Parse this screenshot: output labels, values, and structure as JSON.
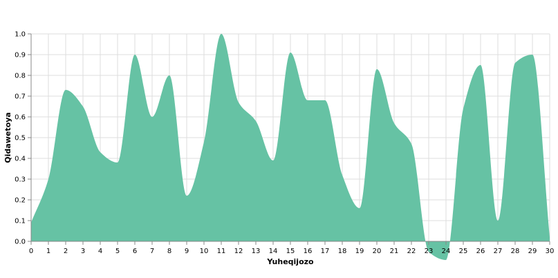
{
  "chart_data": {
    "type": "area",
    "title": "",
    "xlabel": "Yuheqijozo",
    "ylabel": "Qidawetoya",
    "xlim": [
      0,
      30
    ],
    "ylim": [
      0,
      1.0
    ],
    "x_ticks": [
      "0",
      "1",
      "2",
      "3",
      "4",
      "5",
      "6",
      "7",
      "8",
      "9",
      "10",
      "11",
      "12",
      "13",
      "14",
      "15",
      "16",
      "17",
      "18",
      "19",
      "20",
      "21",
      "22",
      "23",
      "24",
      "25",
      "26",
      "27",
      "28",
      "29",
      "30"
    ],
    "y_ticks": [
      "0.0",
      "0.1",
      "0.2",
      "0.3",
      "0.4",
      "0.5",
      "0.6",
      "0.7",
      "0.8",
      "0.9",
      "1.0"
    ],
    "grid": true,
    "legend": "none",
    "color": "#66c2a4",
    "series": [
      {
        "x": [
          0,
          1,
          2,
          3,
          4,
          5,
          6,
          7,
          8,
          9,
          10,
          11,
          12,
          13,
          14,
          15,
          16,
          17,
          18,
          19,
          20,
          21,
          22,
          23,
          24,
          25,
          26,
          27,
          28,
          29,
          30
        ],
        "values": [
          0.09,
          0.3,
          0.73,
          0.65,
          0.43,
          0.38,
          0.9,
          0.6,
          0.8,
          0.22,
          0.48,
          1.0,
          0.67,
          0.58,
          0.39,
          0.91,
          0.68,
          0.68,
          0.32,
          0.16,
          0.83,
          0.57,
          0.47,
          -0.05,
          -0.09,
          0.64,
          0.85,
          0.1,
          0.86,
          0.9,
          0.02
        ]
      }
    ]
  }
}
